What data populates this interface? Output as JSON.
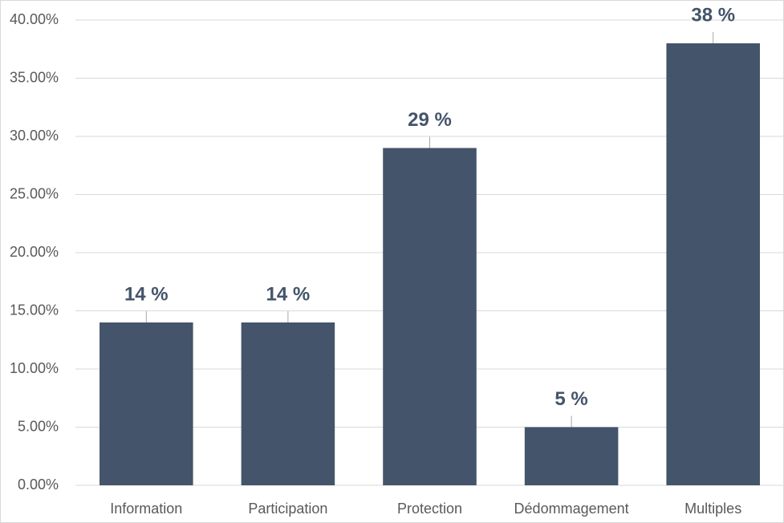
{
  "chart_data": {
    "type": "bar",
    "categories": [
      "Information",
      "Participation",
      "Protection",
      "Dédommagement",
      "Multiples"
    ],
    "values": [
      14,
      14,
      29,
      5,
      38
    ],
    "value_labels": [
      "14 %",
      "14 %",
      "29 %",
      "5 %",
      "38 %"
    ],
    "color": "#44546a",
    "ylim": [
      0,
      40
    ],
    "yticks": [
      {
        "value": 0,
        "label": "0.00%"
      },
      {
        "value": 5,
        "label": "5.00%"
      },
      {
        "value": 10,
        "label": "10.00%"
      },
      {
        "value": 15,
        "label": "15.00%"
      },
      {
        "value": 20,
        "label": "20.00%"
      },
      {
        "value": 25,
        "label": "25.00%"
      },
      {
        "value": 30,
        "label": "30.00%"
      },
      {
        "value": 35,
        "label": "35.00%"
      },
      {
        "value": 40,
        "label": "40.00%"
      }
    ],
    "grid": true
  }
}
